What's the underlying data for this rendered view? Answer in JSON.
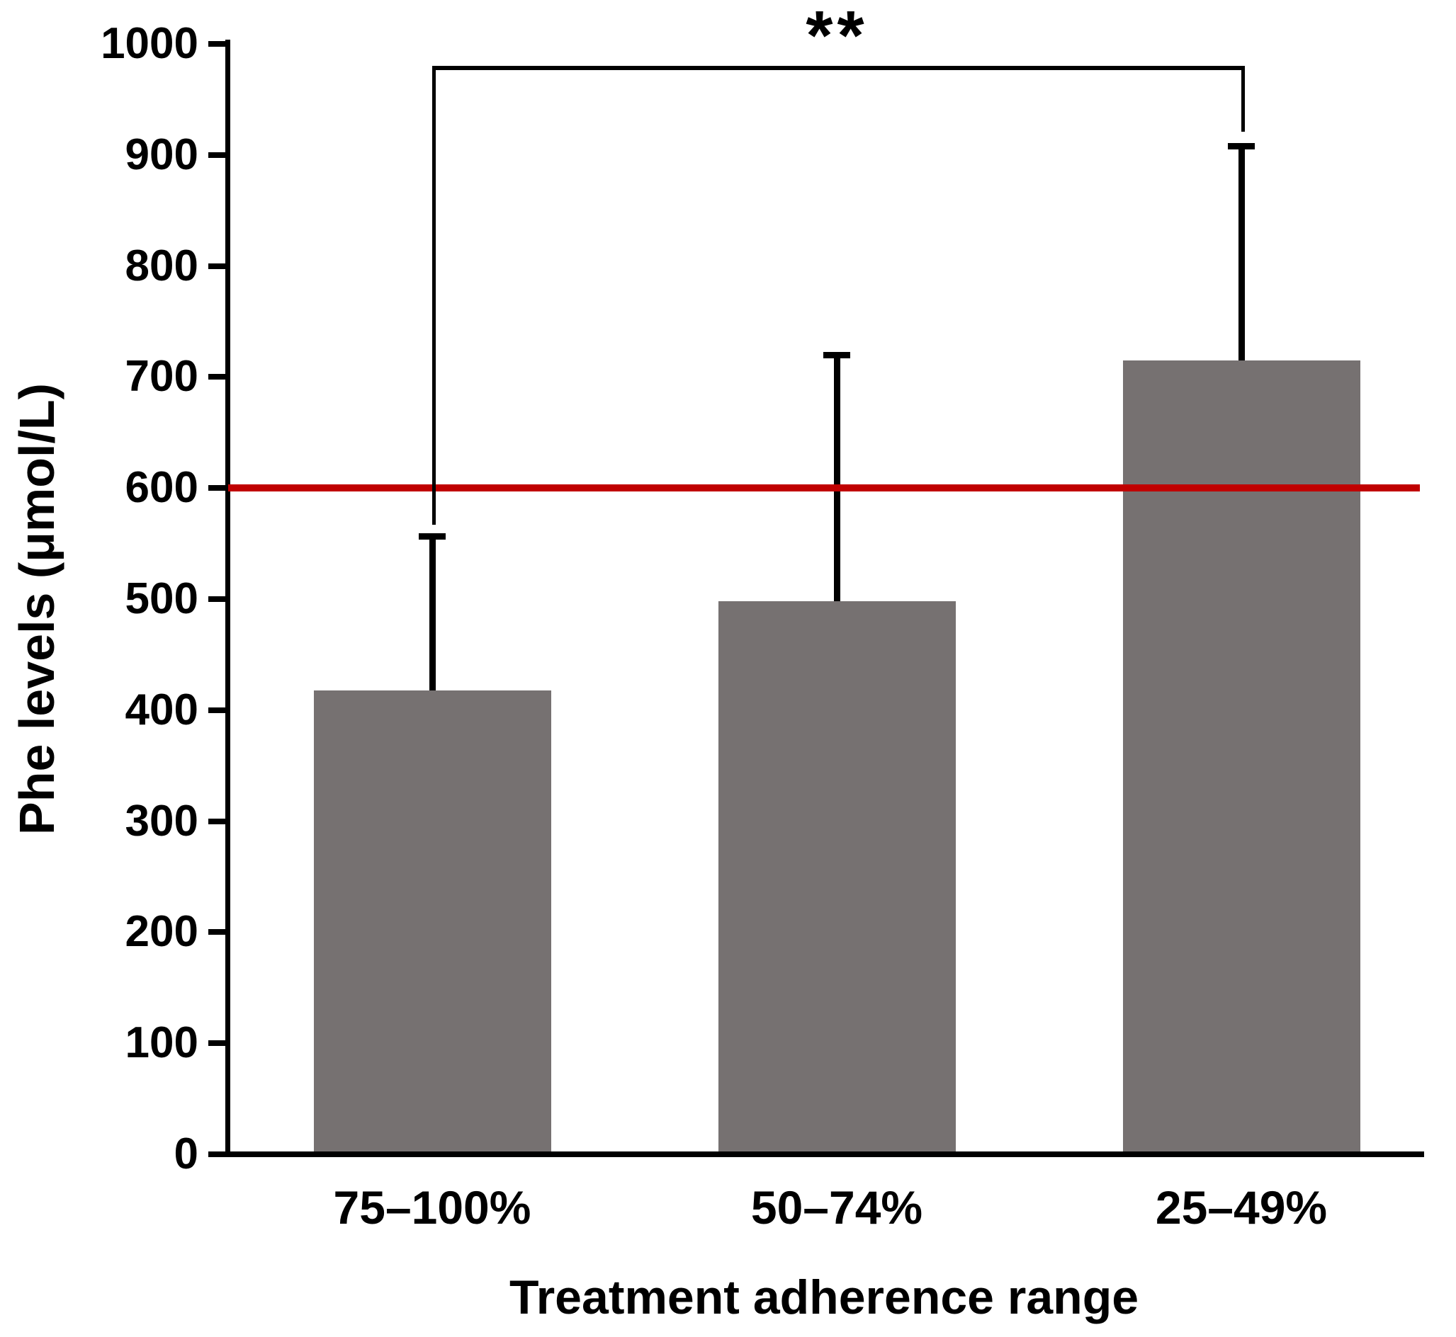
{
  "chart_data": {
    "type": "bar",
    "title": "",
    "xlabel": "Treatment adherence range",
    "ylabel": "Phe levels (μmol/L)",
    "categories": [
      "75–100%",
      "50–74%",
      "25–49%"
    ],
    "values": [
      418,
      498,
      715
    ],
    "error_bar_tops": [
      557,
      720,
      908
    ],
    "yticks": [
      0,
      100,
      200,
      300,
      400,
      500,
      600,
      700,
      800,
      900,
      1000
    ],
    "ylim": [
      0,
      1000
    ],
    "grid": "off",
    "legend": "none",
    "bar_color": "#767171",
    "axis_color": "#000000",
    "reference_line": {
      "value": 600,
      "color": "#c00000"
    },
    "significance": {
      "label": "**",
      "between": [
        "75–100%",
        "25–49%"
      ]
    }
  }
}
